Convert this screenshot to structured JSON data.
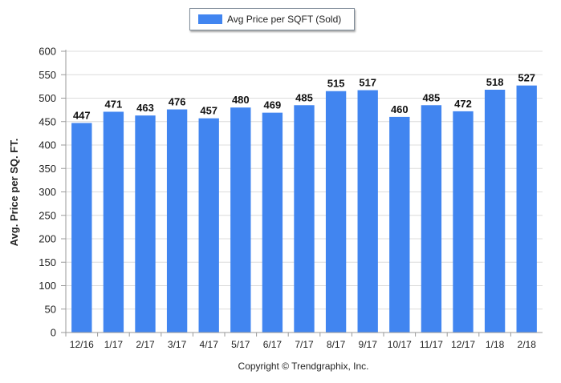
{
  "chart_data": {
    "type": "bar",
    "title": "",
    "xlabel": "",
    "ylabel": "Avg. Price per SQ. FT.",
    "ylim": [
      0,
      600
    ],
    "yticks": [
      0,
      50,
      100,
      150,
      200,
      250,
      300,
      350,
      400,
      450,
      500,
      550,
      600
    ],
    "grid": true,
    "legend_position": "top-center",
    "categories": [
      "12/16",
      "1/17",
      "2/17",
      "3/17",
      "4/17",
      "5/17",
      "6/17",
      "7/17",
      "8/17",
      "9/17",
      "10/17",
      "11/17",
      "12/17",
      "1/18",
      "2/18"
    ],
    "series": [
      {
        "name": "Avg Price per SQFT (Sold)",
        "color": "#4185f0",
        "values": [
          447,
          471,
          463,
          476,
          457,
          480,
          469,
          485,
          515,
          517,
          460,
          485,
          472,
          518,
          527
        ]
      }
    ]
  },
  "footer": "Copyright © Trendgraphix, Inc."
}
